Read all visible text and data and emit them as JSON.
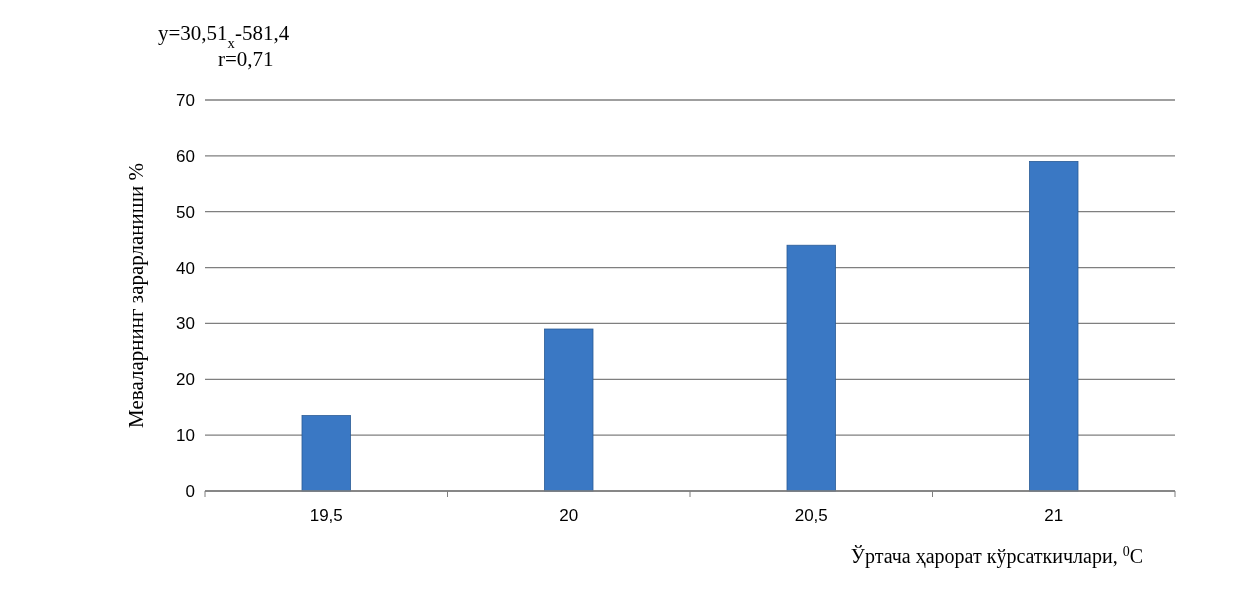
{
  "chart_data": {
    "type": "bar",
    "categories": [
      "19,5",
      "20",
      "20,5",
      "21"
    ],
    "values": [
      13.5,
      29,
      44,
      59
    ],
    "color": "#3a78c4",
    "ylim": [
      0,
      70
    ],
    "yticks": [
      0,
      10,
      20,
      30,
      40,
      50,
      60,
      70
    ],
    "grid": "y",
    "ylabel": "Меваларнинг зарарланиши %",
    "xlabel": "Ўртача ҳарорат кўрсаткичлари, $^{0}$C",
    "annotations": [
      "y=30,51$_{x}$-581,4",
      "r=0,71"
    ]
  }
}
